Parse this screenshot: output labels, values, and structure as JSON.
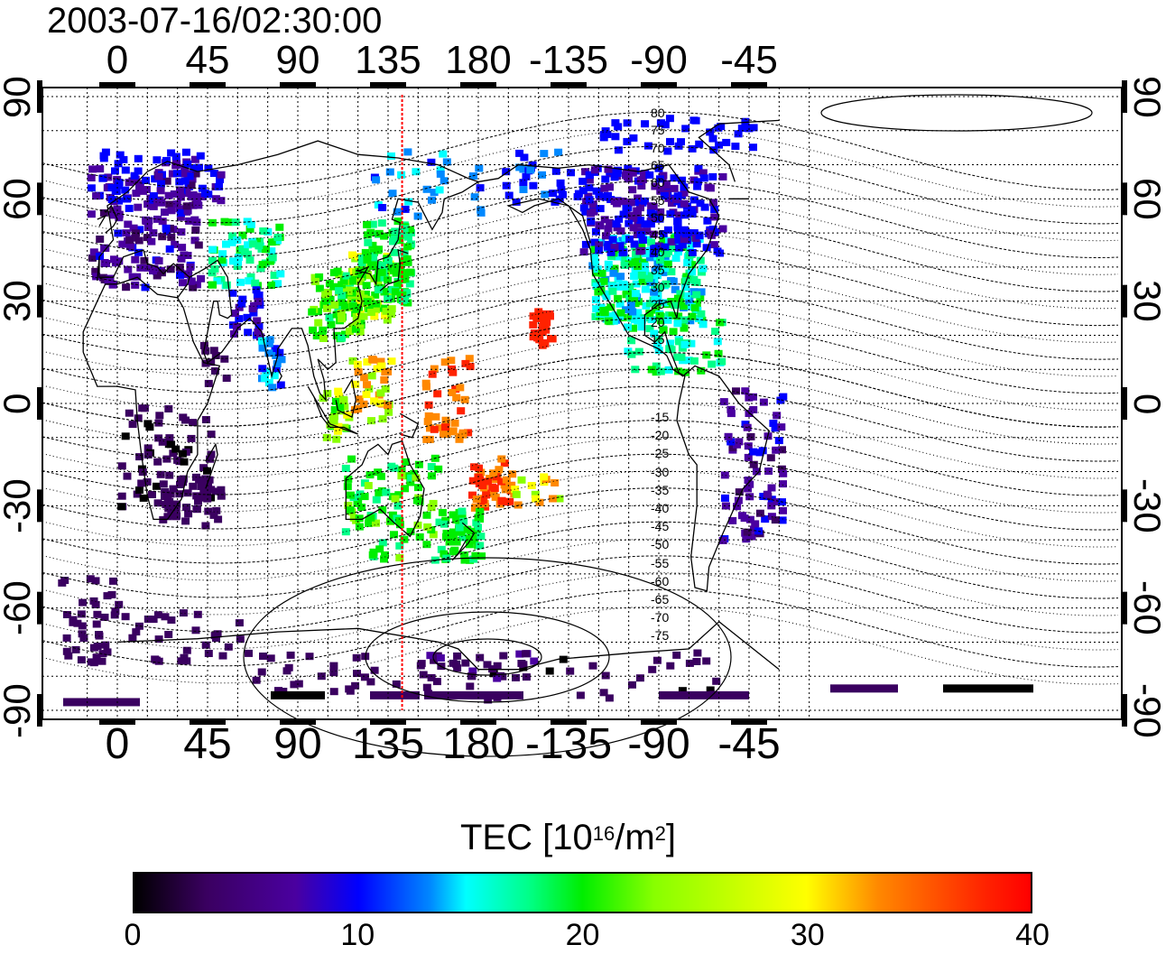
{
  "timestamp": "2003-07-16/02:30:00",
  "map": {
    "top_lon_ticks": [
      "0",
      "45",
      "90",
      "135",
      "180",
      "-135",
      "-90",
      "-45"
    ],
    "bottom_lon_ticks": [
      "0",
      "45",
      "90",
      "135",
      "180",
      "-135",
      "-90",
      "-45"
    ],
    "left_lat_ticks": [
      "90",
      "60",
      "30",
      "0",
      "-30",
      "-60",
      "-90"
    ],
    "right_lat_ticks": [
      "90",
      "60",
      "30",
      "0",
      "-30",
      "-60",
      "-90"
    ],
    "lat_values": [
      90,
      60,
      30,
      0,
      -30,
      -60,
      -90
    ],
    "lon_values": [
      0,
      45,
      90,
      135,
      180,
      -135,
      -90,
      -45
    ],
    "magnetic_lat_labels_north": [
      "80",
      "75",
      "70",
      "65",
      "60",
      "55",
      "50",
      "45",
      "40",
      "35",
      "30",
      "25",
      "20",
      "15"
    ],
    "magnetic_lat_labels_south": [
      "-15",
      "-20",
      "-25",
      "-30",
      "-35",
      "-40",
      "-45",
      "-50",
      "-55",
      "-60",
      "-65",
      "-70",
      "-75"
    ],
    "meridian_line_lon": 142,
    "meridian_line_color": "#ff0000"
  },
  "colorbar": {
    "title_prefix": "TEC  [10",
    "title_exp1": "16",
    "title_mid": "/m",
    "title_exp2": "2",
    "title_suffix": "]",
    "ticks": [
      "0",
      "10",
      "20",
      "30",
      "40"
    ],
    "min": 0,
    "max": 40
  },
  "colors": {
    "low": "#3a0060",
    "blue": "#0000ff",
    "cyan": "#00ffff",
    "green": "#00ee00",
    "yellow": "#ffff00",
    "orange": "#ff8800",
    "red": "#ff0000"
  }
}
